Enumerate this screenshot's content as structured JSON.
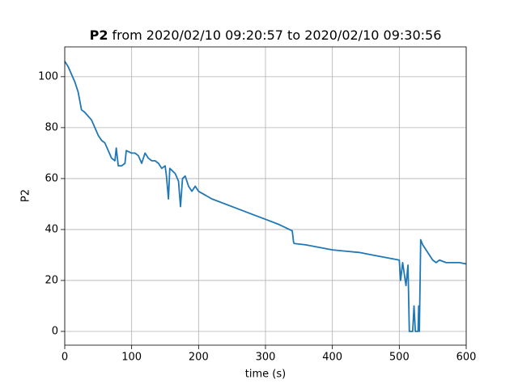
{
  "chart_data": {
    "type": "line",
    "title": [
      "P2",
      "from 2020/02/10 09:20:57 to 2020/02/10 09:30:56"
    ],
    "x_label": "time (s)",
    "y_label": "P2",
    "xlim": [
      0,
      600
    ],
    "xticks": [
      0,
      100,
      200,
      300,
      400,
      500,
      600
    ],
    "ylim": [
      -5.4,
      111.7
    ],
    "yticks": [
      0,
      20,
      40,
      60,
      80,
      100
    ],
    "grid": true,
    "series": [
      {
        "name": "P2",
        "color": "#1f77b4",
        "x": [
          0,
          5,
          10,
          15,
          20,
          25,
          30,
          40,
          45,
          50,
          55,
          60,
          65,
          70,
          75,
          77,
          80,
          85,
          90,
          92,
          100,
          105,
          110,
          115,
          120,
          125,
          130,
          135,
          140,
          145,
          150,
          152,
          155,
          157,
          165,
          170,
          173,
          176,
          180,
          185,
          190,
          195,
          200,
          220,
          250,
          280,
          300,
          320,
          340,
          342,
          343,
          360,
          380,
          400,
          420,
          440,
          460,
          480,
          500,
          502,
          505,
          510,
          513,
          515,
          520,
          522,
          524,
          528,
          529,
          530,
          532,
          535,
          540,
          545,
          550,
          555,
          560,
          570,
          580,
          590,
          600
        ],
        "values": [
          106,
          104,
          101,
          98,
          94,
          87,
          86,
          83,
          80,
          77,
          75,
          74,
          71,
          68,
          67,
          72,
          65,
          65,
          66,
          71,
          70,
          70,
          69,
          66,
          70,
          68,
          67,
          67,
          66,
          64,
          65,
          61,
          52,
          64,
          62,
          59,
          49,
          60,
          61,
          57,
          55,
          57,
          55,
          52,
          49,
          46,
          44,
          42,
          39.5,
          35,
          34.5,
          34,
          33,
          32,
          31.5,
          31,
          30,
          29,
          28,
          20,
          27,
          18,
          26,
          0,
          0,
          10,
          0,
          0,
          10,
          0,
          36,
          34,
          32,
          30,
          28,
          27,
          28,
          27,
          27,
          27,
          26.5
        ]
      }
    ]
  }
}
